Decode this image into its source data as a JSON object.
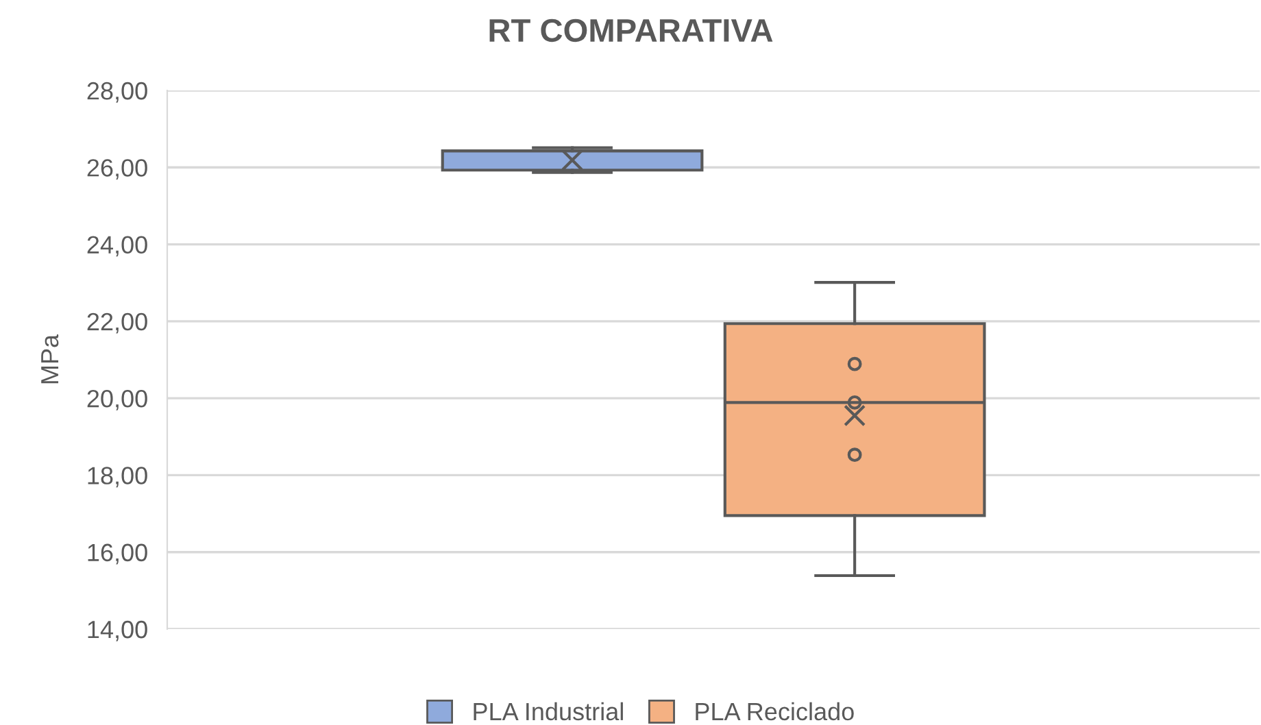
{
  "chart_data": {
    "type": "box",
    "title": "RT COMPARATIVA",
    "ylabel": "MPa",
    "categories": [
      null
    ],
    "series": [
      {
        "name": "PLA Industrial",
        "color": "#8faadc",
        "boxes": [
          {
            "low": 25.87,
            "q1": 25.93,
            "median": 26.43,
            "q3": 26.43,
            "high": 26.51,
            "mean": 26.19
          }
        ]
      },
      {
        "name": "PLA Reciclado",
        "color": "#f4b183",
        "boxes": [
          {
            "low": 15.39,
            "q1": 16.95,
            "median": 19.89,
            "q3": 21.94,
            "high": 23.01,
            "mean": 19.55,
            "outliers": [
              20.89,
              19.89,
              18.53
            ]
          }
        ]
      }
    ],
    "ylim": [
      14,
      28
    ],
    "yticks": [
      {
        "value": 14,
        "label": "14,00"
      },
      {
        "value": 16,
        "label": "16,00"
      },
      {
        "value": 18,
        "label": "18,00"
      },
      {
        "value": 20,
        "label": "20,00"
      },
      {
        "value": 22,
        "label": "22,00"
      },
      {
        "value": 24,
        "label": "24,00"
      },
      {
        "value": 26,
        "label": "26,00"
      },
      {
        "value": 28,
        "label": "28,00"
      }
    ],
    "grid": "y",
    "legend": "bottom"
  }
}
